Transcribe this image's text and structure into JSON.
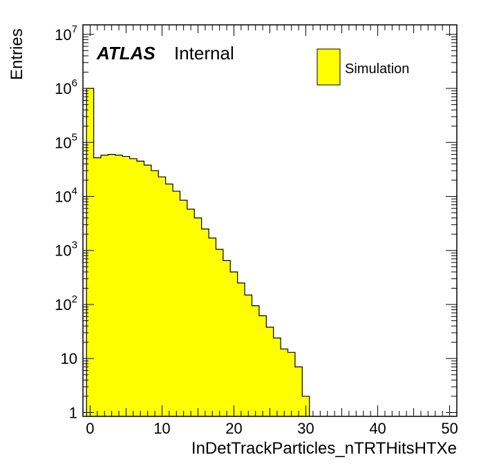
{
  "chart_data": {
    "type": "bar",
    "style": "histogram",
    "xlabel": "InDetTrackParticles_nTRTHitsHTXe",
    "ylabel": "Entries",
    "xlim": [
      -1,
      51
    ],
    "ylim": [
      0.85,
      15000000
    ],
    "yscale": "log",
    "grid": false,
    "bin_width": 1,
    "bin_edges_start": -0.5,
    "values": [
      1000000,
      52000,
      58000,
      60000,
      58000,
      55000,
      50000,
      45000,
      38000,
      30000,
      23000,
      17000,
      12500,
      8500,
      5800,
      4000,
      2500,
      1700,
      1050,
      650,
      400,
      250,
      150,
      95,
      62,
      38,
      24,
      15,
      13,
      7,
      2
    ],
    "series": [
      {
        "name": "Simulation",
        "color": "#ffff00"
      }
    ],
    "legend_position": "top-right",
    "x_ticks": [
      "0",
      "10",
      "20",
      "30",
      "40",
      "50"
    ],
    "y_ticks": [
      {
        "value": 1,
        "base": "1",
        "exp": ""
      },
      {
        "value": 10,
        "base": "10",
        "exp": ""
      },
      {
        "value": 100,
        "base": "10",
        "exp": "2"
      },
      {
        "value": 1000,
        "base": "10",
        "exp": "3"
      },
      {
        "value": 10000,
        "base": "10",
        "exp": "4"
      },
      {
        "value": 100000,
        "base": "10",
        "exp": "5"
      },
      {
        "value": 1000000,
        "base": "10",
        "exp": "6"
      },
      {
        "value": 10000000,
        "base": "10",
        "exp": "7"
      }
    ],
    "annotations": {
      "atlas": "ATLAS",
      "status": "Internal"
    }
  },
  "colors": {
    "fill": "#ffff00",
    "line": "#000000",
    "background": "#ffffff"
  }
}
